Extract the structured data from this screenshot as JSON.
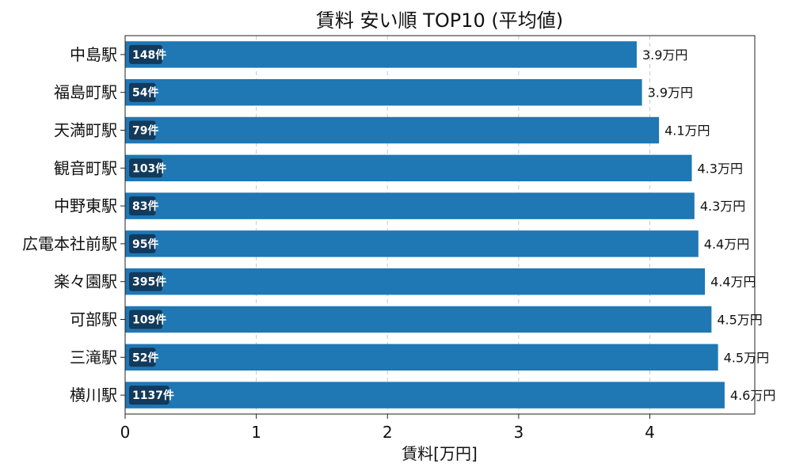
{
  "chart_data": {
    "type": "bar",
    "orientation": "horizontal",
    "title": "賃料 安い順 TOP10 (平均値)",
    "xlabel": "賃料[万円]",
    "ylabel": "",
    "xlim": [
      0,
      4.8
    ],
    "xticks": [
      0,
      1,
      2,
      3,
      4
    ],
    "grid": "x-dashed",
    "bar_color": "#1f77b4",
    "count_box_color": "#123a5c",
    "value_suffix": "万円",
    "count_suffix": "件",
    "categories": [
      "中島駅",
      "福島町駅",
      "天満町駅",
      "観音町駅",
      "中野東駅",
      "広電本社前駅",
      "楽々園駅",
      "可部駅",
      "三滝駅",
      "横川駅"
    ],
    "values": [
      3.9,
      3.94,
      4.07,
      4.32,
      4.34,
      4.37,
      4.42,
      4.47,
      4.52,
      4.57
    ],
    "value_labels": [
      "3.9",
      "3.9",
      "4.1",
      "4.3",
      "4.3",
      "4.4",
      "4.4",
      "4.5",
      "4.5",
      "4.6"
    ],
    "counts": [
      148,
      54,
      79,
      103,
      83,
      95,
      395,
      109,
      52,
      1137
    ]
  }
}
